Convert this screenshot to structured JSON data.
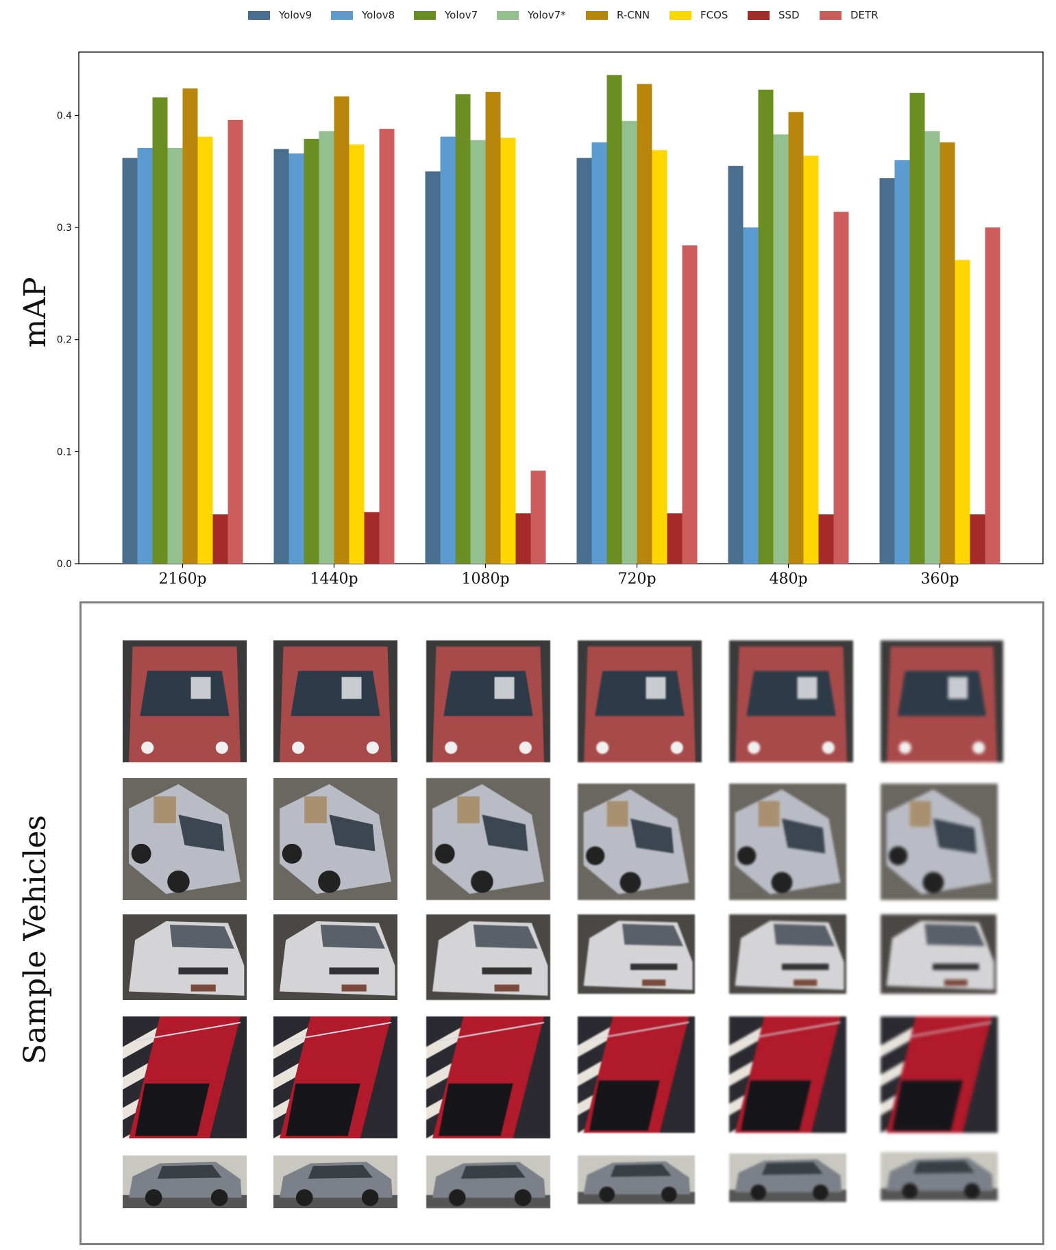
{
  "legend": [
    {
      "name": "Yolov9",
      "color": "#4a6e8e"
    },
    {
      "name": "Yolov8",
      "color": "#5b9bd0"
    },
    {
      "name": "Yolov7",
      "color": "#6b8e23"
    },
    {
      "name": "Yolov7*",
      "color": "#93c08e"
    },
    {
      "name": "R-CNN",
      "color": "#b8860b"
    },
    {
      "name": "FCOS",
      "color": "#ffd700"
    },
    {
      "name": "SSD",
      "color": "#a52a2a"
    },
    {
      "name": "DETR",
      "color": "#cd5c5c"
    }
  ],
  "chart_data": {
    "type": "bar",
    "categories": [
      "2160p",
      "1440p",
      "1080p",
      "720p",
      "480p",
      "360p"
    ],
    "series": [
      {
        "name": "Yolov9",
        "color": "#4a6e8e",
        "values": [
          0.362,
          0.37,
          0.35,
          0.362,
          0.355,
          0.344
        ]
      },
      {
        "name": "Yolov8",
        "color": "#5b9bd0",
        "values": [
          0.371,
          0.366,
          0.381,
          0.376,
          0.3,
          0.36
        ]
      },
      {
        "name": "Yolov7",
        "color": "#6b8e23",
        "values": [
          0.416,
          0.379,
          0.419,
          0.436,
          0.423,
          0.42
        ]
      },
      {
        "name": "Yolov7*",
        "color": "#93c08e",
        "values": [
          0.371,
          0.386,
          0.378,
          0.395,
          0.383,
          0.386
        ]
      },
      {
        "name": "R-CNN",
        "color": "#b8860b",
        "values": [
          0.424,
          0.417,
          0.421,
          0.428,
          0.403,
          0.376
        ]
      },
      {
        "name": "FCOS",
        "color": "#ffd700",
        "values": [
          0.381,
          0.374,
          0.38,
          0.369,
          0.364,
          0.271
        ]
      },
      {
        "name": "SSD",
        "color": "#a52a2a",
        "values": [
          0.044,
          0.046,
          0.045,
          0.045,
          0.044,
          0.044
        ]
      },
      {
        "name": "DETR",
        "color": "#cd5c5c",
        "values": [
          0.396,
          0.388,
          0.083,
          0.284,
          0.314,
          0.3
        ]
      }
    ],
    "title": "",
    "xlabel": "",
    "ylabel": "mAP",
    "ylim": [
      0,
      0.4565
    ],
    "yticks": [
      "0.0",
      "0.1",
      "0.2",
      "0.3",
      "0.4"
    ],
    "grid": false,
    "legend_position": "top"
  },
  "gallery": {
    "title": "Sample Vehicles",
    "rows": [
      {
        "subject": "red-suv-top-view",
        "body": "#a94a4a",
        "bg": "#3a3a3a"
      },
      {
        "subject": "silver-suv-angled",
        "body": "#b9bcc4",
        "bg": "#6a6660"
      },
      {
        "subject": "white-sedan-front",
        "body": "#d4d4d6",
        "bg": "#4a4844"
      },
      {
        "subject": "red-car-roof-crosswalk",
        "body": "#b01a2a",
        "bg": "#2a2a30"
      },
      {
        "subject": "grey-suv-side",
        "body": "#7c8088",
        "bg": "#c8c8c0"
      }
    ],
    "columns": [
      "2160p",
      "1440p",
      "1080p",
      "720p",
      "480p",
      "360p"
    ]
  }
}
